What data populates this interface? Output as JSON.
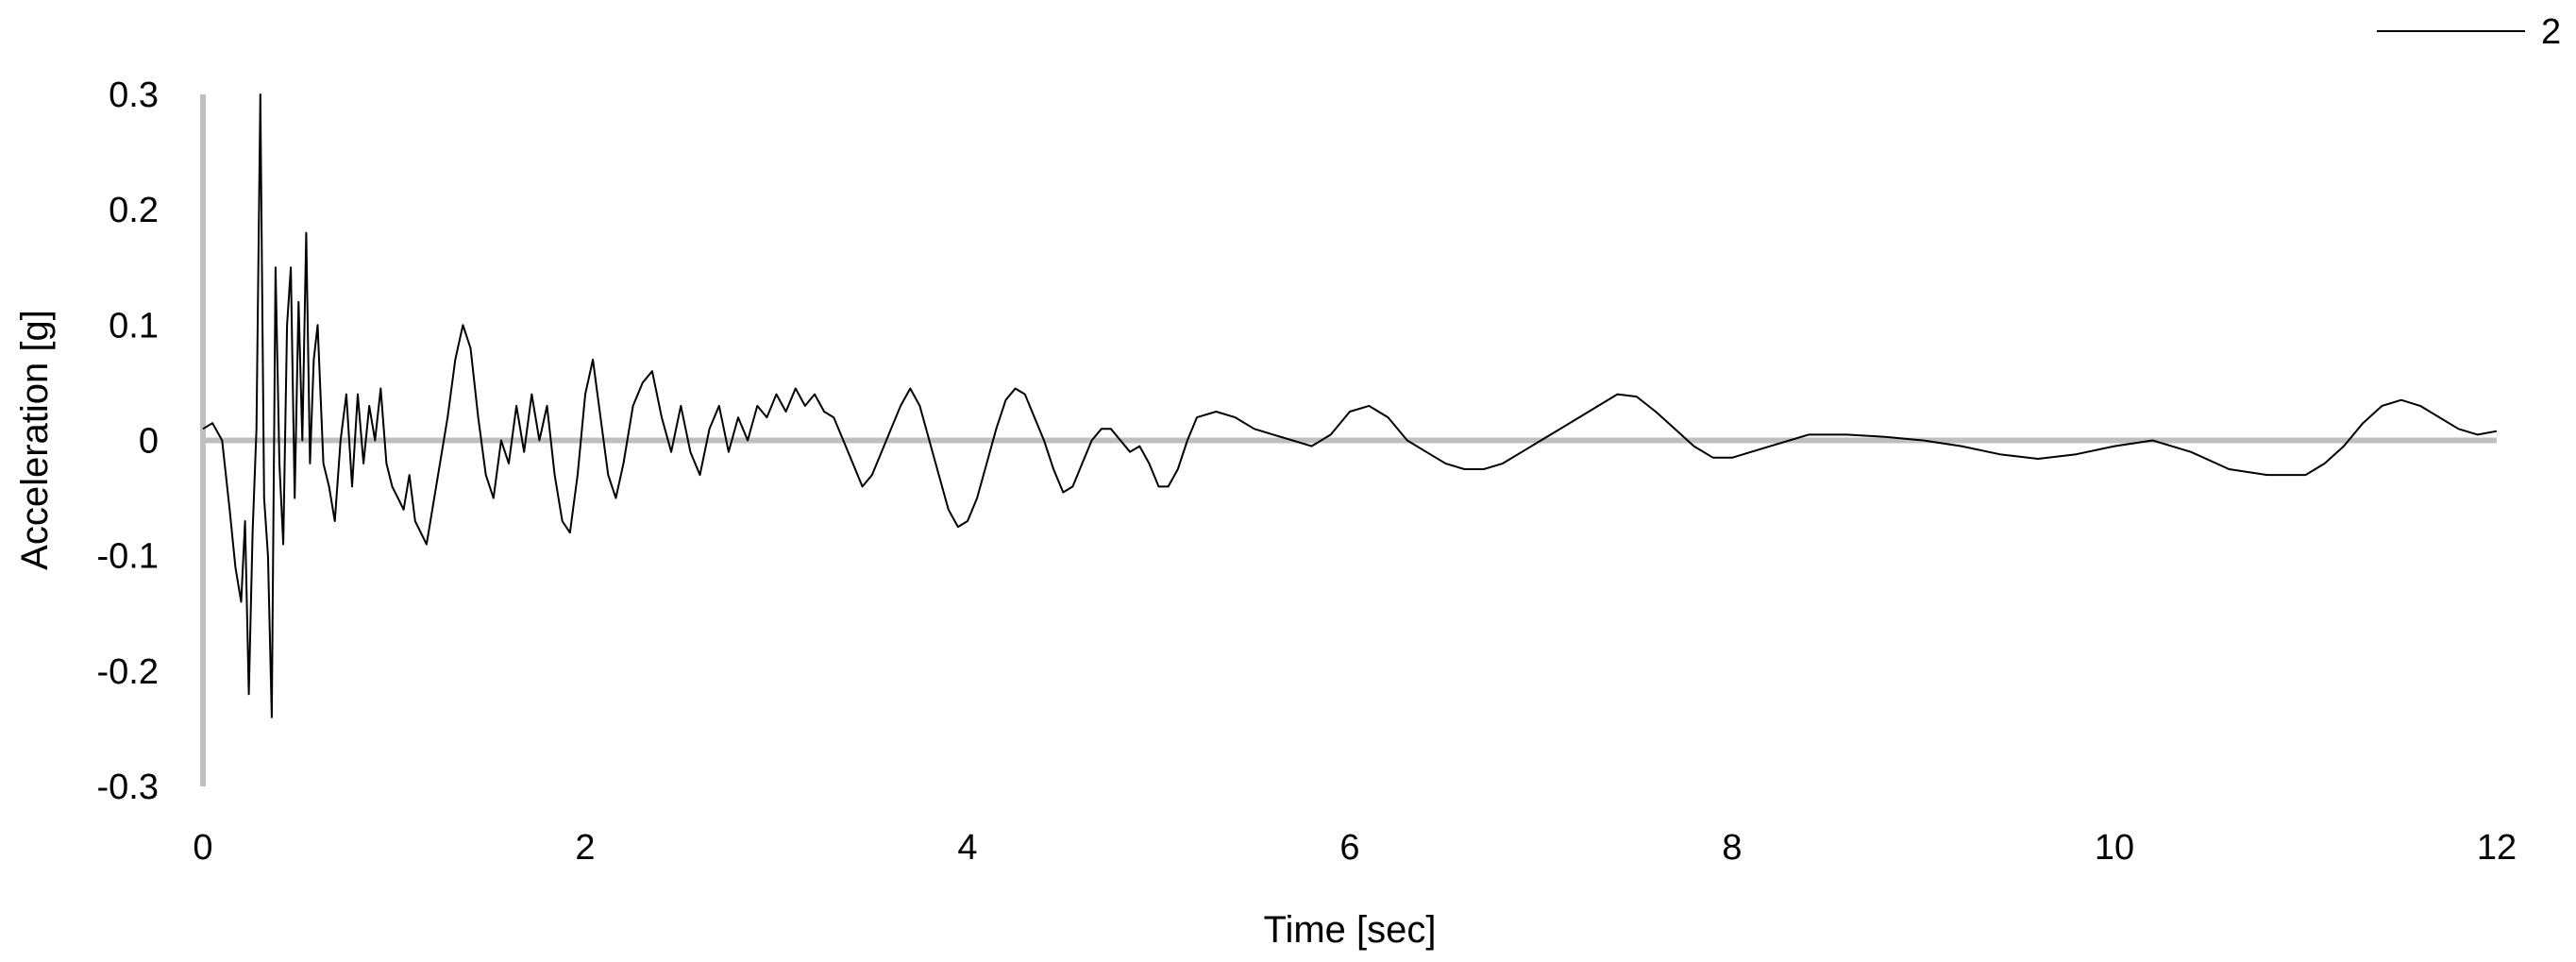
{
  "chart_data": {
    "type": "line",
    "title": "",
    "xlabel": "Time [sec]",
    "ylabel": "Acceleration [g]",
    "xlim": [
      0,
      12
    ],
    "ylim": [
      -0.3,
      0.3
    ],
    "x_ticks": [
      0,
      2,
      4,
      6,
      8,
      10,
      12
    ],
    "x_tick_labels": [
      "0",
      "2",
      "4",
      "6",
      "8",
      "10",
      "12"
    ],
    "y_ticks": [
      0.3,
      0.2,
      0.1,
      0,
      -0.1,
      -0.2,
      -0.3
    ],
    "y_tick_labels": [
      "0.3",
      "0.2",
      "0.1",
      "0",
      "-0.1",
      "-0.2",
      "-0.3"
    ],
    "grid": false,
    "legend_position": "top-right",
    "axis_color": "#bfbfbf",
    "line_color": "#000000",
    "series": [
      {
        "name": "2",
        "x": [
          0,
          0.05,
          0.1,
          0.14,
          0.17,
          0.2,
          0.22,
          0.24,
          0.26,
          0.28,
          0.3,
          0.32,
          0.34,
          0.36,
          0.38,
          0.4,
          0.42,
          0.44,
          0.46,
          0.48,
          0.5,
          0.52,
          0.54,
          0.56,
          0.58,
          0.6,
          0.63,
          0.66,
          0.69,
          0.72,
          0.75,
          0.78,
          0.81,
          0.84,
          0.87,
          0.9,
          0.93,
          0.96,
          0.99,
          1.02,
          1.05,
          1.08,
          1.11,
          1.14,
          1.17,
          1.2,
          1.24,
          1.28,
          1.32,
          1.36,
          1.4,
          1.44,
          1.48,
          1.52,
          1.56,
          1.6,
          1.64,
          1.68,
          1.72,
          1.76,
          1.8,
          1.84,
          1.88,
          1.92,
          1.96,
          2.0,
          2.04,
          2.08,
          2.12,
          2.16,
          2.2,
          2.25,
          2.3,
          2.35,
          2.4,
          2.45,
          2.5,
          2.55,
          2.6,
          2.65,
          2.7,
          2.75,
          2.8,
          2.85,
          2.9,
          2.95,
          3.0,
          3.05,
          3.1,
          3.15,
          3.2,
          3.25,
          3.3,
          3.35,
          3.4,
          3.45,
          3.5,
          3.55,
          3.6,
          3.65,
          3.7,
          3.75,
          3.8,
          3.85,
          3.9,
          3.95,
          4.0,
          4.05,
          4.1,
          4.15,
          4.2,
          4.25,
          4.3,
          4.35,
          4.4,
          4.45,
          4.5,
          4.55,
          4.6,
          4.65,
          4.7,
          4.75,
          4.8,
          4.85,
          4.9,
          4.95,
          5.0,
          5.05,
          5.1,
          5.15,
          5.2,
          5.3,
          5.4,
          5.5,
          5.6,
          5.7,
          5.8,
          5.9,
          6.0,
          6.1,
          6.2,
          6.3,
          6.4,
          6.5,
          6.6,
          6.7,
          6.8,
          6.9,
          7.0,
          7.1,
          7.2,
          7.3,
          7.4,
          7.5,
          7.6,
          7.7,
          7.8,
          7.9,
          8.0,
          8.1,
          8.2,
          8.3,
          8.4,
          8.6,
          8.8,
          9.0,
          9.2,
          9.4,
          9.6,
          9.8,
          10.0,
          10.2,
          10.4,
          10.6,
          10.8,
          11.0,
          11.1,
          11.2,
          11.3,
          11.4,
          11.5,
          11.6,
          11.7,
          11.8,
          11.9,
          12.0
        ],
        "values": [
          0.01,
          0.015,
          0.0,
          -0.06,
          -0.11,
          -0.14,
          -0.07,
          -0.22,
          -0.08,
          0.01,
          0.3,
          -0.05,
          -0.1,
          -0.24,
          0.15,
          -0.02,
          -0.09,
          0.1,
          0.15,
          -0.05,
          0.12,
          0.0,
          0.18,
          -0.02,
          0.07,
          0.1,
          -0.02,
          -0.04,
          -0.07,
          0.0,
          0.04,
          -0.04,
          0.04,
          -0.02,
          0.03,
          0.0,
          0.045,
          -0.02,
          -0.04,
          -0.05,
          -0.06,
          -0.03,
          -0.07,
          -0.08,
          -0.09,
          -0.06,
          -0.02,
          0.02,
          0.07,
          0.1,
          0.08,
          0.02,
          -0.03,
          -0.05,
          0.0,
          -0.02,
          0.03,
          -0.01,
          0.04,
          0.0,
          0.03,
          -0.03,
          -0.07,
          -0.08,
          -0.03,
          0.04,
          0.07,
          0.02,
          -0.03,
          -0.05,
          -0.02,
          0.03,
          0.05,
          0.06,
          0.02,
          -0.01,
          0.03,
          -0.01,
          -0.03,
          0.01,
          0.03,
          -0.01,
          0.02,
          0.0,
          0.03,
          0.02,
          0.04,
          0.025,
          0.045,
          0.03,
          0.04,
          0.025,
          0.02,
          0.0,
          -0.02,
          -0.04,
          -0.03,
          -0.01,
          0.01,
          0.03,
          0.045,
          0.03,
          0.0,
          -0.03,
          -0.06,
          -0.075,
          -0.07,
          -0.05,
          -0.02,
          0.01,
          0.035,
          0.045,
          0.04,
          0.02,
          0.0,
          -0.025,
          -0.045,
          -0.04,
          -0.02,
          0.0,
          0.01,
          0.01,
          0.0,
          -0.01,
          -0.005,
          -0.02,
          -0.04,
          -0.04,
          -0.025,
          0.0,
          0.02,
          0.025,
          0.02,
          0.01,
          0.005,
          0.0,
          -0.005,
          0.005,
          0.025,
          0.03,
          0.02,
          0.0,
          -0.01,
          -0.02,
          -0.025,
          -0.025,
          -0.02,
          -0.01,
          0.0,
          0.01,
          0.02,
          0.03,
          0.04,
          0.038,
          0.025,
          0.01,
          -0.005,
          -0.015,
          -0.015,
          -0.01,
          -0.005,
          0.0,
          0.005,
          0.005,
          0.003,
          0.0,
          -0.005,
          -0.012,
          -0.016,
          -0.012,
          -0.005,
          0.0,
          -0.01,
          -0.025,
          -0.03,
          -0.03,
          -0.02,
          -0.005,
          0.015,
          0.03,
          0.035,
          0.03,
          0.02,
          0.01,
          0.005,
          0.008
        ]
      }
    ]
  }
}
